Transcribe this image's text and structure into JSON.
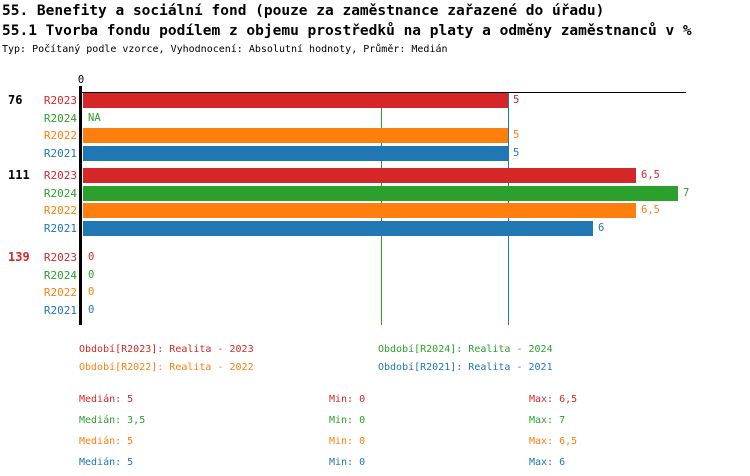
{
  "header": {
    "title_line1": "55. Benefity a sociální fond (pouze za zaměstnance zařazené do úřadu)",
    "title_line2": "55.1 Tvorba fondu podílem z objemu prostředků na platy a odměny zaměstnanců v %",
    "meta": "Typ: Počítaný podle vzorce, Vyhodnocení: Absolutní hodnoty, Průměr: Medián"
  },
  "colors": {
    "r2023": "#d62728",
    "r2024": "#2ca02c",
    "r2022": "#ff7f0e",
    "r2021": "#1f77b4",
    "axis": "#000000",
    "group_highlight": "#d62728"
  },
  "chart_data": {
    "type": "bar",
    "orientation": "horizontal",
    "axis_tick_label": "0",
    "xlim": [
      0,
      7.8
    ],
    "grid": "on",
    "series_labels": [
      "R2023",
      "R2024",
      "R2022",
      "R2021"
    ],
    "series_colors": [
      "#d62728",
      "#2ca02c",
      "#ff7f0e",
      "#1f77b4"
    ],
    "gridlines": [
      {
        "value": 3.5,
        "color": "#2ca02c"
      },
      {
        "value": 5,
        "color": "#1f77b4"
      }
    ],
    "groups": [
      {
        "label": "76",
        "label_color": "#000000",
        "bars": [
          {
            "series": "R2023",
            "value": 5,
            "display": "5"
          },
          {
            "series": "R2024",
            "value": null,
            "display": "NA"
          },
          {
            "series": "R2022",
            "value": 5,
            "display": "5"
          },
          {
            "series": "R2021",
            "value": 5,
            "display": "5"
          }
        ]
      },
      {
        "label": "111",
        "label_color": "#000000",
        "bars": [
          {
            "series": "R2023",
            "value": 6.5,
            "display": "6,5"
          },
          {
            "series": "R2024",
            "value": 7,
            "display": "7"
          },
          {
            "series": "R2022",
            "value": 6.5,
            "display": "6,5"
          },
          {
            "series": "R2021",
            "value": 6,
            "display": "6"
          }
        ]
      },
      {
        "label": "139",
        "label_color": "#d62728",
        "bars": [
          {
            "series": "R2023",
            "value": 0,
            "display": "0"
          },
          {
            "series": "R2024",
            "value": 0,
            "display": "0"
          },
          {
            "series": "R2022",
            "value": 0,
            "display": "0"
          },
          {
            "series": "R2021",
            "value": 0,
            "display": "0"
          }
        ]
      }
    ]
  },
  "legend": {
    "items": [
      {
        "label": "Období[R2023]: Realita - 2023",
        "color": "#d62728",
        "col": 0,
        "row": 0
      },
      {
        "label": "Období[R2024]: Realita - 2024",
        "color": "#2ca02c",
        "col": 1,
        "row": 0
      },
      {
        "label": "Období[R2022]: Realita - 2022",
        "color": "#ff7f0e",
        "col": 0,
        "row": 1
      },
      {
        "label": "Období[R2021]: Realita - 2021",
        "color": "#1f77b4",
        "col": 1,
        "row": 1
      }
    ]
  },
  "stats": {
    "rows": [
      {
        "series": "R2023",
        "color": "#d62728",
        "median": "Medián: 5",
        "min": "Min: 0",
        "max": "Max: 6,5"
      },
      {
        "series": "R2024",
        "color": "#2ca02c",
        "median": "Medián: 3,5",
        "min": "Min: 0",
        "max": "Max: 7"
      },
      {
        "series": "R2022",
        "color": "#ff7f0e",
        "median": "Medián: 5",
        "min": "Min: 0",
        "max": "Max: 6,5"
      },
      {
        "series": "R2021",
        "color": "#1f77b4",
        "median": "Medián: 5",
        "min": "Min: 0",
        "max": "Max: 6"
      }
    ]
  }
}
